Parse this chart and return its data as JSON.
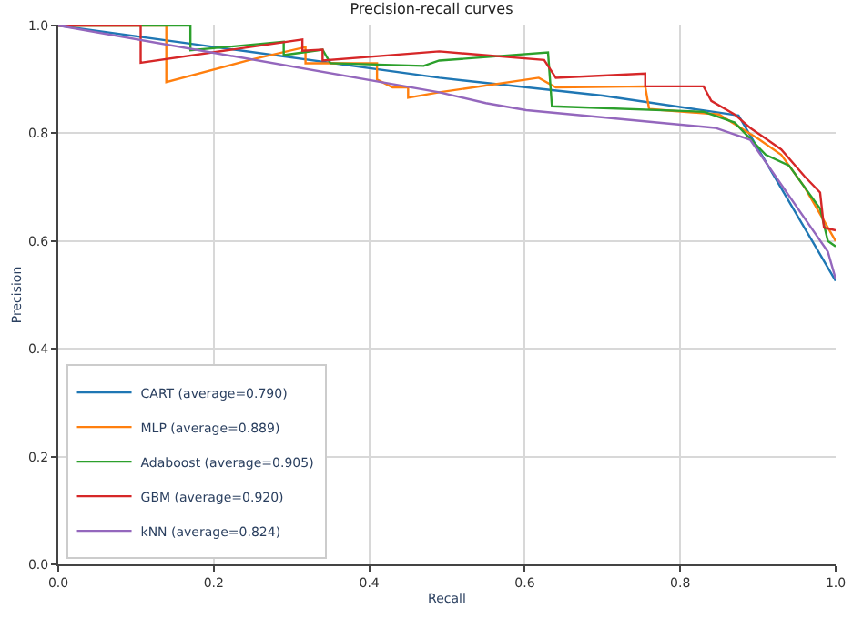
{
  "chart_data": {
    "type": "line",
    "title": "Precision-recall curves",
    "xlabel": "Recall",
    "ylabel": "Precision",
    "xlim": [
      0,
      1
    ],
    "ylim": [
      0,
      1
    ],
    "xticks": [
      {
        "value": 0,
        "label": "0.0"
      },
      0.2,
      0.4,
      0.6,
      0.8,
      {
        "value": 1,
        "label": "1.0"
      }
    ],
    "yticks": [
      {
        "value": 0,
        "label": "0.0"
      },
      0.2,
      0.4,
      0.6,
      0.8,
      {
        "value": 1,
        "label": "1.0"
      }
    ],
    "grid": true,
    "legend": "bottom left",
    "marker": "none",
    "line_style": "solid",
    "series": [
      {
        "name": "CART (average=0.790)",
        "color": "#1f77b4",
        "x": [
          0,
          0.49,
          0.7,
          0.875,
          1.0
        ],
        "values": [
          1,
          0.903,
          0.87,
          0.833,
          0.526
        ]
      },
      {
        "name": "MLP (average=0.889)",
        "color": "#ff7f0e",
        "x": [
          0,
          0.139,
          0.139,
          0.246,
          0.318,
          0.318,
          0.41,
          0.41,
          0.43,
          0.45,
          0.45,
          0.49,
          0.618,
          0.64,
          0.755,
          0.76,
          0.85,
          0.9,
          0.93,
          0.96,
          0.98,
          1.0
        ],
        "values": [
          1,
          1,
          0.895,
          0.936,
          0.96,
          0.93,
          0.93,
          0.9,
          0.885,
          0.885,
          0.866,
          0.876,
          0.903,
          0.885,
          0.887,
          0.845,
          0.835,
          0.79,
          0.76,
          0.7,
          0.65,
          0.6
        ]
      },
      {
        "name": "Adaboost (average=0.905)",
        "color": "#2ca02c",
        "x": [
          0,
          0.17,
          0.17,
          0.29,
          0.29,
          0.34,
          0.35,
          0.47,
          0.49,
          0.63,
          0.635,
          0.83,
          0.87,
          0.89,
          0.91,
          0.94,
          0.96,
          0.98,
          0.99,
          1.0
        ],
        "values": [
          1,
          1,
          0.954,
          0.97,
          0.945,
          0.955,
          0.93,
          0.925,
          0.935,
          0.95,
          0.85,
          0.84,
          0.82,
          0.79,
          0.76,
          0.74,
          0.7,
          0.66,
          0.6,
          0.59
        ]
      },
      {
        "name": "GBM (average=0.920)",
        "color": "#d62728",
        "x": [
          0,
          0.106,
          0.106,
          0.314,
          0.314,
          0.34,
          0.34,
          0.49,
          0.625,
          0.64,
          0.755,
          0.755,
          0.83,
          0.84,
          0.87,
          0.89,
          0.91,
          0.93,
          0.96,
          0.98,
          0.985,
          1.0
        ],
        "values": [
          1,
          1,
          0.931,
          0.974,
          0.953,
          0.955,
          0.935,
          0.952,
          0.936,
          0.903,
          0.911,
          0.887,
          0.887,
          0.86,
          0.835,
          0.81,
          0.79,
          0.77,
          0.72,
          0.69,
          0.625,
          0.62
        ]
      },
      {
        "name": "kNN (average=0.824)",
        "color": "#9467bd",
        "x": [
          0,
          0.49,
          0.55,
          0.602,
          0.845,
          0.89,
          0.99,
          1.0
        ],
        "values": [
          1,
          0.876,
          0.856,
          0.843,
          0.81,
          0.788,
          0.58,
          0.53
        ]
      }
    ]
  }
}
